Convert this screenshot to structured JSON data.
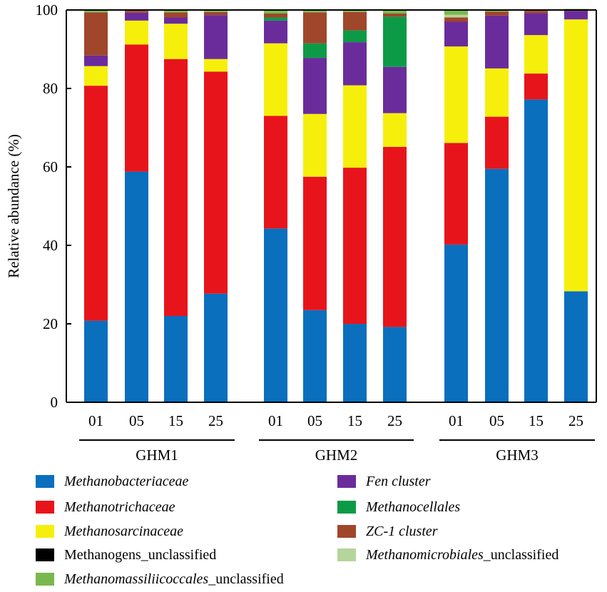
{
  "chart_data": {
    "type": "bar",
    "stacked": true,
    "ylabel": "Relative abundance (%)",
    "ylim": [
      0,
      100
    ],
    "yticks": [
      0,
      20,
      40,
      60,
      80,
      100
    ],
    "groups": [
      {
        "name": "GHM1",
        "samples": [
          "01",
          "05",
          "15",
          "25"
        ]
      },
      {
        "name": "GHM2",
        "samples": [
          "01",
          "05",
          "15",
          "25"
        ]
      },
      {
        "name": "GHM3",
        "samples": [
          "01",
          "05",
          "15",
          "25"
        ]
      }
    ],
    "series": [
      {
        "name": "Methanobacteriaceae",
        "color": "#0a6fbd",
        "values": [
          20.8,
          58.8,
          22.0,
          27.7,
          44.3,
          23.5,
          20.0,
          19.2,
          40.2,
          59.5,
          77.2,
          28.3
        ]
      },
      {
        "name": "Methanotrichaceae",
        "color": "#e8141b",
        "values": [
          59.9,
          32.4,
          65.5,
          56.6,
          28.7,
          34.0,
          39.8,
          45.9,
          25.9,
          13.3,
          6.6,
          0.0
        ]
      },
      {
        "name": "Methanosarcinaceae",
        "color": "#f6ef0c",
        "values": [
          5.0,
          6.1,
          9.0,
          3.2,
          18.5,
          16.0,
          21.0,
          8.6,
          24.6,
          12.3,
          9.8,
          69.3
        ]
      },
      {
        "name": "Methanogens_unclassified",
        "color": "#000000",
        "values": [
          0,
          0,
          0,
          0,
          0,
          0,
          0,
          0,
          0,
          0,
          0,
          0
        ]
      },
      {
        "name": "Fen cluster",
        "color": "#6a2c9b",
        "values": [
          2.7,
          2.0,
          1.6,
          11.2,
          5.8,
          14.3,
          11.0,
          11.8,
          6.3,
          13.5,
          5.6,
          2.2
        ]
      },
      {
        "name": "Methanocellales",
        "color": "#0d9a46",
        "values": [
          0,
          0,
          0,
          0,
          0.8,
          3.7,
          3.0,
          12.8,
          0,
          0,
          0,
          0
        ]
      },
      {
        "name": "ZC-1 cluster",
        "color": "#a0462b",
        "values": [
          11.0,
          0.5,
          1.3,
          0.8,
          1.0,
          7.9,
          4.7,
          0.8,
          1.1,
          1.0,
          0.6,
          0.2
        ]
      },
      {
        "name": "Methanomicrobiales_unclassified",
        "color": "#b5d59b",
        "values": [
          0,
          0,
          0,
          0,
          0,
          0,
          0,
          0,
          0.7,
          0,
          0,
          0
        ]
      },
      {
        "name": "Methanomassiliicoccales_unclassified",
        "color": "#79b84e",
        "values": [
          0.6,
          0.2,
          0.6,
          0.5,
          0.9,
          0.6,
          0.5,
          0.9,
          1.2,
          0.4,
          0.2,
          0.3
        ]
      }
    ]
  },
  "legend": [
    {
      "italic": "Methanobacteriaceae",
      "plain": ""
    },
    {
      "italic": "Fen cluster",
      "plain": ""
    },
    {
      "italic": "Methanotrichaceae",
      "plain": ""
    },
    {
      "italic": "Methanocellales",
      "plain": ""
    },
    {
      "italic": "Methanosarcinaceae",
      "plain": ""
    },
    {
      "italic": "ZC-1 cluster",
      "plain": ""
    },
    {
      "italic": "",
      "plain": "Methanogens_unclassified"
    },
    {
      "italic": "Methanomicrobiales",
      "plain": "_unclassified"
    },
    {
      "italic": "Methanomassiliicoccales",
      "plain": "_unclassified"
    }
  ]
}
